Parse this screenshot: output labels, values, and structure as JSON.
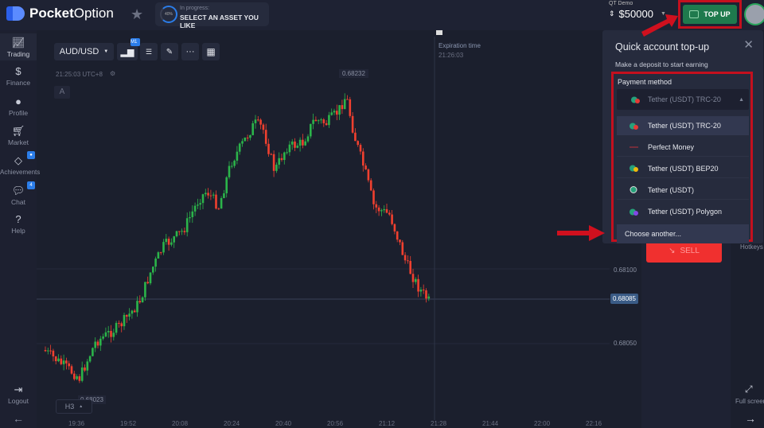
{
  "header": {
    "brand_bold": "Pocket",
    "brand_light": "Option",
    "progress_percent": "40%",
    "progress_label": "In progress:",
    "progress_text": "SELECT AN ASSET YOU LIKE",
    "account_type": "QT Demo",
    "balance": "$50000",
    "topup_label": "TOP UP"
  },
  "sidebar": {
    "items": [
      {
        "label": "Trading",
        "icon": "chart-line-icon"
      },
      {
        "label": "Finance",
        "icon": "dollar-icon"
      },
      {
        "label": "Profile",
        "icon": "user-icon"
      },
      {
        "label": "Market",
        "icon": "cart-icon"
      },
      {
        "label": "Achievements",
        "icon": "diamond-icon",
        "badge": "●"
      },
      {
        "label": "Chat",
        "icon": "chat-icon",
        "badge": "4"
      },
      {
        "label": "Help",
        "icon": "help-icon"
      }
    ],
    "logout": "Logout"
  },
  "chart": {
    "asset": "AUD/USD",
    "timeframe_badge": "M1",
    "clock": "21:25:03 UTC+8",
    "indicator_letter": "A",
    "high_label": "0.68232",
    "low_label": "0.68023",
    "current_price": "0.68085",
    "price_ticks": [
      "0.68100",
      "0.68050"
    ],
    "time_ticks": [
      "19:36",
      "19:52",
      "20:08",
      "20:24",
      "20:40",
      "20:56",
      "21:12",
      "21:28",
      "21:44",
      "22:00",
      "22:16"
    ],
    "expiration_label": "Expiration time",
    "expiration_time": "21:26:03",
    "timeframe_select": "H3"
  },
  "trade": {
    "sell_label": "SELL",
    "hotkeys": "Hotkeys",
    "fullscreen": "Full screen"
  },
  "popup": {
    "title": "Quick account top-up",
    "subtitle": "Make a deposit to start earning",
    "payment_label": "Payment method",
    "selected": "Tether (USDT) TRC-20",
    "options": [
      "Tether (USDT) TRC-20",
      "Perfect Money",
      "Tether (USDT) BEP20",
      "Tether (USDT)",
      "Tether (USDT) Polygon"
    ],
    "choose_another": "Choose another..."
  },
  "colors": {
    "up": "#2bb44a",
    "down": "#f0402f",
    "accent": "#2b7de9",
    "highlight": "#c4101e",
    "topup": "#1f7a4d"
  }
}
